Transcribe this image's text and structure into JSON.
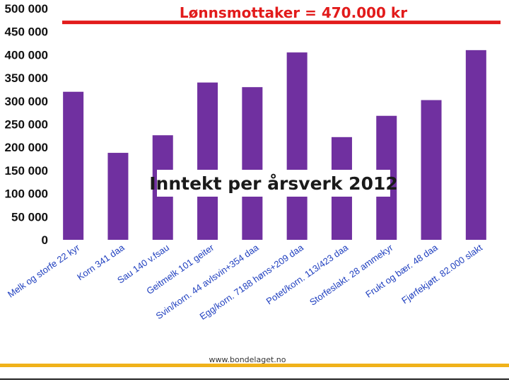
{
  "chart_data": {
    "type": "bar",
    "title": "Inntekt per årsverk 2012",
    "categories": [
      "Melk og storfe  22 kyr",
      "Korn 341 daa",
      "Sau 140 v.fsau",
      "Geitmelk  101 geiter",
      "Svin/korn. 44 avlsvin+354 daa",
      "Egg/korn. 7188 høns+209 daa",
      "Potet/korn. 113/423 daa",
      "Storfeslakt. 28 ammekyr",
      "Frukt og bær. 48 daa",
      "Fjørfekjøtt. 82.000 slakt"
    ],
    "values": [
      320000,
      188000,
      226000,
      340000,
      330000,
      405000,
      222000,
      268000,
      302000,
      410000
    ],
    "ylim": [
      0,
      500000
    ],
    "yticks": [
      0,
      50000,
      100000,
      150000,
      200000,
      250000,
      300000,
      350000,
      400000,
      450000,
      500000
    ],
    "ytick_labels": [
      "0",
      "50 000",
      "100 000",
      "150 000",
      "200 000",
      "250 000",
      "300 000",
      "350 000",
      "400 000",
      "450 000",
      "500 000"
    ],
    "reference_line": {
      "value": 470000,
      "label": "Lønnsmottaker = 470.000 kr",
      "color": "#e21b1b"
    },
    "bar_color": "#7030a0",
    "grid": false
  },
  "footer": {
    "source": "www.bondelaget.no",
    "accent_color": "#f0b21a"
  }
}
